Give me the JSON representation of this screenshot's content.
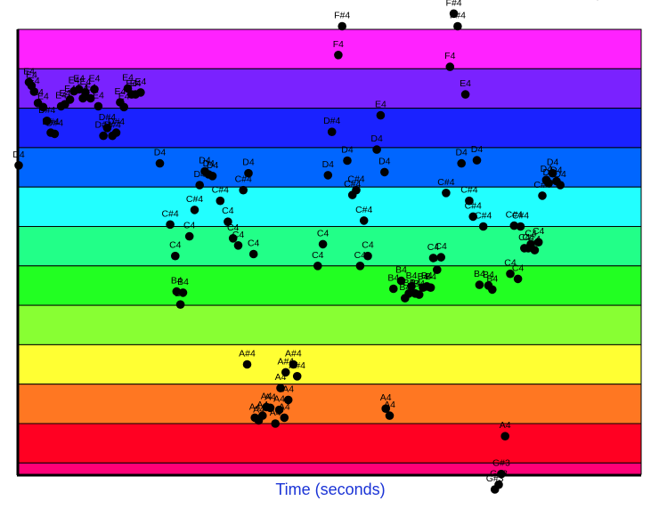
{
  "chart_data": {
    "type": "scatter",
    "title": "",
    "xlabel": "Time (seconds)",
    "ylabel": "",
    "x_ticks_shown": false,
    "y_ticks_shown": false,
    "grid": false,
    "legend": "none",
    "ylim": [
      "F#3",
      "G4"
    ],
    "bands": [
      {
        "note": "G4",
        "color": "#ff22ff"
      },
      {
        "note": "F#4",
        "color": "#7a22ff"
      },
      {
        "note": "F4",
        "color": "#1a22ff"
      },
      {
        "note": "E4",
        "color": "#0066ff"
      },
      {
        "note": "D#4",
        "color": "#22ffff"
      },
      {
        "note": "D4",
        "color": "#22ff88"
      },
      {
        "note": "C#4",
        "color": "#22ff22"
      },
      {
        "note": "C4",
        "color": "#88ff33"
      },
      {
        "note": "B4",
        "color": "#ffff33"
      },
      {
        "note": "A#4",
        "color": "#ff7722"
      },
      {
        "note": "A4",
        "color": "#ff0022"
      },
      {
        "note": "G#3",
        "color": "#ff0077"
      }
    ],
    "points": [
      {
        "x": 0.38,
        "note": "E4",
        "y": 10.66
      },
      {
        "x": 0.4,
        "note": "E4",
        "y": 10.57
      },
      {
        "x": 0.42,
        "note": "E4",
        "y": 10.42
      },
      {
        "x": 0.45,
        "note": "E4",
        "y": 10.13
      },
      {
        "x": 0.49,
        "note": "E4",
        "y": 10.03
      },
      {
        "x": 0.52,
        "note": "D#4",
        "y": 9.68
      },
      {
        "x": 0.55,
        "note": "D#4",
        "y": 9.38
      },
      {
        "x": 0.58,
        "note": "D#4",
        "y": 9.35
      },
      {
        "x": 0.63,
        "note": "E4",
        "y": 10.05
      },
      {
        "x": 0.66,
        "note": "E4",
        "y": 10.1
      },
      {
        "x": 0.7,
        "note": "E4",
        "y": 10.22
      },
      {
        "x": 0.73,
        "note": "E4",
        "y": 10.43
      },
      {
        "x": 0.77,
        "note": "E4",
        "y": 10.48
      },
      {
        "x": 0.8,
        "note": "E4",
        "y": 10.25
      },
      {
        "x": 0.82,
        "note": "E4",
        "y": 10.4
      },
      {
        "x": 0.86,
        "note": "E4",
        "y": 10.25
      },
      {
        "x": 0.89,
        "note": "E4",
        "y": 10.48
      },
      {
        "x": 0.92,
        "note": "E4",
        "y": 10.05
      },
      {
        "x": 0.96,
        "note": "D#4",
        "y": 9.3
      },
      {
        "x": 0.99,
        "note": "D#4",
        "y": 9.5
      },
      {
        "x": 1.03,
        "note": "D#4",
        "y": 9.3
      },
      {
        "x": 1.06,
        "note": "D#4",
        "y": 9.38
      },
      {
        "x": 1.09,
        "note": "E4",
        "y": 10.15
      },
      {
        "x": 1.12,
        "note": "E4",
        "y": 10.03
      },
      {
        "x": 1.15,
        "note": "E4",
        "y": 10.5
      },
      {
        "x": 1.18,
        "note": "E4",
        "y": 10.35
      },
      {
        "x": 1.21,
        "note": "E4",
        "y": 10.35
      },
      {
        "x": 1.25,
        "note": "E4",
        "y": 10.4
      },
      {
        "x": 0.3,
        "note": "D4",
        "y": 8.55
      },
      {
        "x": 1.4,
        "note": "D4",
        "y": 8.6
      },
      {
        "x": 1.48,
        "note": "C#4",
        "y": 7.05
      },
      {
        "x": 1.52,
        "note": "C4",
        "y": 6.25
      },
      {
        "x": 1.53,
        "note": "B4",
        "y": 5.35
      },
      {
        "x": 1.56,
        "note": "B4",
        "y": 5.02
      },
      {
        "x": 1.58,
        "note": "B4",
        "y": 5.32
      },
      {
        "x": 1.63,
        "note": "C4",
        "y": 6.75
      },
      {
        "x": 1.67,
        "note": "C#4",
        "y": 7.42
      },
      {
        "x": 1.71,
        "note": "D4",
        "y": 8.05
      },
      {
        "x": 1.75,
        "note": "D4",
        "y": 8.4
      },
      {
        "x": 1.78,
        "note": "D4",
        "y": 8.32
      },
      {
        "x": 1.81,
        "note": "D4",
        "y": 8.28
      },
      {
        "x": 1.87,
        "note": "C#4",
        "y": 7.65
      },
      {
        "x": 1.93,
        "note": "C4",
        "y": 7.12
      },
      {
        "x": 1.97,
        "note": "C4",
        "y": 6.7
      },
      {
        "x": 2.01,
        "note": "C4",
        "y": 6.52
      },
      {
        "x": 2.05,
        "note": "C#4",
        "y": 7.92
      },
      {
        "x": 2.09,
        "note": "D4",
        "y": 8.35
      },
      {
        "x": 2.13,
        "note": "C4",
        "y": 6.3
      },
      {
        "x": 2.08,
        "note": "A#4",
        "y": 3.5
      },
      {
        "x": 2.14,
        "note": "A4",
        "y": 2.15
      },
      {
        "x": 2.17,
        "note": "A4",
        "y": 2.08
      },
      {
        "x": 2.2,
        "note": "A4",
        "y": 2.2
      },
      {
        "x": 2.23,
        "note": "A4",
        "y": 2.42
      },
      {
        "x": 2.26,
        "note": "A4",
        "y": 2.4
      },
      {
        "x": 2.3,
        "note": "A4",
        "y": 2.0
      },
      {
        "x": 2.33,
        "note": "A4",
        "y": 2.35
      },
      {
        "x": 2.37,
        "note": "A4",
        "y": 2.15
      },
      {
        "x": 2.4,
        "note": "A4",
        "y": 2.6
      },
      {
        "x": 2.34,
        "note": "A4",
        "y": 2.9
      },
      {
        "x": 2.38,
        "note": "A#4",
        "y": 3.3
      },
      {
        "x": 2.44,
        "note": "A#4",
        "y": 3.5
      },
      {
        "x": 2.47,
        "note": "A#4",
        "y": 3.2
      },
      {
        "x": 2.63,
        "note": "C4",
        "y": 6.0
      },
      {
        "x": 2.67,
        "note": "C4",
        "y": 6.55
      },
      {
        "x": 2.71,
        "note": "D4",
        "y": 8.3
      },
      {
        "x": 2.74,
        "note": "D#4",
        "y": 9.4
      },
      {
        "x": 2.79,
        "note": "F4",
        "y": 11.35
      },
      {
        "x": 2.82,
        "note": "F#4",
        "y": 12.08
      },
      {
        "x": 2.86,
        "note": "D4",
        "y": 8.67
      },
      {
        "x": 2.9,
        "note": "C#4",
        "y": 7.8
      },
      {
        "x": 2.93,
        "note": "C#4",
        "y": 7.92
      },
      {
        "x": 2.96,
        "note": "C4",
        "y": 6.0
      },
      {
        "x": 2.99,
        "note": "C#4",
        "y": 7.15
      },
      {
        "x": 3.02,
        "note": "C4",
        "y": 6.25
      },
      {
        "x": 3.09,
        "note": "D4",
        "y": 8.95
      },
      {
        "x": 3.12,
        "note": "E4",
        "y": 9.82
      },
      {
        "x": 3.15,
        "note": "D4",
        "y": 8.38
      },
      {
        "x": 3.16,
        "note": "A4",
        "y": 2.38
      },
      {
        "x": 3.19,
        "note": "A4",
        "y": 2.2
      },
      {
        "x": 3.22,
        "note": "B4",
        "y": 5.42
      },
      {
        "x": 3.28,
        "note": "B4",
        "y": 5.62
      },
      {
        "x": 3.31,
        "note": "B4",
        "y": 5.18
      },
      {
        "x": 3.34,
        "note": "B4",
        "y": 5.3
      },
      {
        "x": 3.36,
        "note": "B4",
        "y": 5.48
      },
      {
        "x": 3.39,
        "note": "B4",
        "y": 5.3
      },
      {
        "x": 3.42,
        "note": "B4",
        "y": 5.27
      },
      {
        "x": 3.45,
        "note": "B4",
        "y": 5.45
      },
      {
        "x": 3.48,
        "note": "B4",
        "y": 5.48
      },
      {
        "x": 3.51,
        "note": "B4",
        "y": 5.45
      },
      {
        "x": 3.53,
        "note": "C4",
        "y": 6.2
      },
      {
        "x": 3.56,
        "note": "C4",
        "y": 5.9
      },
      {
        "x": 3.59,
        "note": "C4",
        "y": 6.22
      },
      {
        "x": 3.63,
        "note": "C#4",
        "y": 7.85
      },
      {
        "x": 3.66,
        "note": "F4",
        "y": 11.05
      },
      {
        "x": 3.69,
        "note": "F#4",
        "y": 12.4
      },
      {
        "x": 3.72,
        "note": "F#4",
        "y": 12.08
      },
      {
        "x": 3.75,
        "note": "D4",
        "y": 8.6
      },
      {
        "x": 3.78,
        "note": "E4",
        "y": 10.35
      },
      {
        "x": 3.81,
        "note": "C#4",
        "y": 7.65
      },
      {
        "x": 3.84,
        "note": "C#4",
        "y": 7.25
      },
      {
        "x": 3.87,
        "note": "D4",
        "y": 8.68
      },
      {
        "x": 3.89,
        "note": "B4",
        "y": 5.52
      },
      {
        "x": 3.92,
        "note": "C#4",
        "y": 7.0
      },
      {
        "x": 3.96,
        "note": "B4",
        "y": 5.5
      },
      {
        "x": 3.99,
        "note": "B4",
        "y": 5.4
      },
      {
        "x": 4.01,
        "note": "G#3",
        "y": 0.33
      },
      {
        "x": 4.04,
        "note": "G#3",
        "y": 0.45
      },
      {
        "x": 4.06,
        "note": "G#3",
        "y": 0.72
      },
      {
        "x": 4.09,
        "note": "A4",
        "y": 1.68
      },
      {
        "x": 4.13,
        "note": "C4",
        "y": 5.8
      },
      {
        "x": 4.16,
        "note": "C#4",
        "y": 7.02
      },
      {
        "x": 4.19,
        "note": "C4",
        "y": 5.67
      },
      {
        "x": 4.21,
        "note": "C#4",
        "y": 7.0
      },
      {
        "x": 4.24,
        "note": "C4",
        "y": 6.45
      },
      {
        "x": 4.27,
        "note": "C4",
        "y": 6.45
      },
      {
        "x": 4.29,
        "note": "C4",
        "y": 6.55
      },
      {
        "x": 4.32,
        "note": "C4",
        "y": 6.4
      },
      {
        "x": 4.35,
        "note": "C4",
        "y": 6.6
      },
      {
        "x": 4.38,
        "note": "C#4",
        "y": 7.78
      },
      {
        "x": 4.41,
        "note": "D4",
        "y": 8.18
      },
      {
        "x": 4.43,
        "note": "D4",
        "y": 8.1
      },
      {
        "x": 4.46,
        "note": "D4",
        "y": 8.35
      },
      {
        "x": 4.49,
        "note": "D4",
        "y": 8.15
      },
      {
        "x": 4.52,
        "note": "D4",
        "y": 8.05
      },
      {
        "x": 4.81,
        "note": "G4",
        "y": 12.85
      }
    ],
    "point_labels_shown": [
      "E4",
      "E4",
      "E4",
      "E4",
      "E4",
      "D#4",
      "D#4",
      "E4",
      "E4",
      "E4",
      "E4",
      "E4",
      "E4",
      "D#4",
      "D#4",
      "E4",
      "E4",
      "E4",
      "E4",
      "D4",
      "D4",
      "C#4",
      "C4",
      "B4",
      "C4",
      "C#4",
      "D4",
      "D4",
      "D4",
      "D4",
      "C#4",
      "C4",
      "C4",
      "C4",
      "C#4",
      "D4",
      "C4",
      "A#4",
      "A4",
      "A4",
      "A4",
      "A4",
      "A4",
      "A4",
      "A4",
      "A4",
      "A#4",
      "A#4",
      "A#4",
      "C4",
      "C4",
      "D4",
      "D#4",
      "F4",
      "F#4",
      "D4",
      "C#4",
      "C#4",
      "C4",
      "C#4",
      "C4",
      "D4",
      "E4",
      "D4",
      "A4",
      "A4",
      "B4",
      "B4",
      "B4",
      "B4",
      "B4",
      "B4",
      "B4",
      "B4",
      "B4",
      "C4",
      "C4",
      "C4",
      "C#4",
      "F4",
      "F#4",
      "F#4",
      "D4",
      "E4",
      "C#4",
      "C#4",
      "D4",
      "B4",
      "C#4",
      "B4",
      "B4",
      "G#3",
      "G#3",
      "G#3",
      "A4",
      "C4",
      "C#4",
      "C4",
      "C#4",
      "C4",
      "C4",
      "C4",
      "C4",
      "C4",
      "C#4",
      "D4",
      "D4",
      "D4",
      "D4",
      "D4",
      "G4"
    ]
  }
}
